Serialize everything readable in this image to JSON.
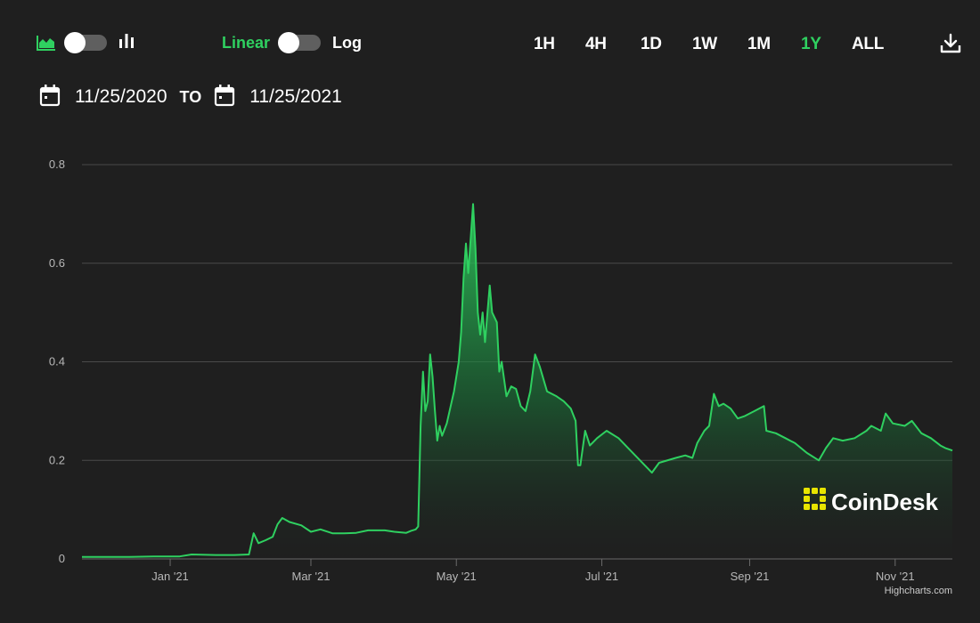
{
  "toolbar": {
    "chart_type_icons": [
      "area-chart-icon",
      "bar-chart-icon"
    ],
    "scale_linear": "Linear",
    "scale_log": "Log",
    "ranges": [
      "1H",
      "4H",
      "1D",
      "1W",
      "1M",
      "1Y",
      "ALL"
    ],
    "active_range": "1Y",
    "download_icon": "download-icon"
  },
  "date_range": {
    "from": "11/25/2020",
    "to_label": "TO",
    "to": "11/25/2021"
  },
  "watermark": {
    "text": "CoinDesk"
  },
  "credit": {
    "text": "Highcharts.com"
  },
  "colors": {
    "accent": "#2fd060",
    "background": "#1f1f1f",
    "grid": "#4a4a4a",
    "axis_text": "#b8b8b8",
    "logo_yellow": "#e8e400"
  },
  "chart_data": {
    "type": "area",
    "title": "",
    "xlabel": "",
    "ylabel": "",
    "ylim": [
      0,
      0.8
    ],
    "xlim": [
      "2020-11-25",
      "2021-11-25"
    ],
    "grid": true,
    "scale": "linear",
    "y_ticks": [
      "0",
      "0.2",
      "0.4",
      "0.6",
      "0.8"
    ],
    "x_ticks": [
      {
        "label": "Jan '21",
        "date": "2021-01-01"
      },
      {
        "label": "Mar '21",
        "date": "2021-03-01"
      },
      {
        "label": "May '21",
        "date": "2021-05-01"
      },
      {
        "label": "Jul '21",
        "date": "2021-07-01"
      },
      {
        "label": "Sep '21",
        "date": "2021-09-01"
      },
      {
        "label": "Nov '21",
        "date": "2021-11-01"
      }
    ],
    "series": [
      {
        "points": [
          [
            "2020-11-25",
            0.004
          ],
          [
            "2020-12-05",
            0.004
          ],
          [
            "2020-12-15",
            0.004
          ],
          [
            "2020-12-25",
            0.005
          ],
          [
            "2021-01-05",
            0.005
          ],
          [
            "2021-01-10",
            0.009
          ],
          [
            "2021-01-20",
            0.008
          ],
          [
            "2021-01-28",
            0.008
          ],
          [
            "2021-02-03",
            0.009
          ],
          [
            "2021-02-05",
            0.052
          ],
          [
            "2021-02-07",
            0.032
          ],
          [
            "2021-02-10",
            0.038
          ],
          [
            "2021-02-13",
            0.045
          ],
          [
            "2021-02-15",
            0.07
          ],
          [
            "2021-02-17",
            0.083
          ],
          [
            "2021-02-20",
            0.075
          ],
          [
            "2021-02-25",
            0.068
          ],
          [
            "2021-03-01",
            0.055
          ],
          [
            "2021-03-05",
            0.06
          ],
          [
            "2021-03-10",
            0.052
          ],
          [
            "2021-03-15",
            0.052
          ],
          [
            "2021-03-20",
            0.053
          ],
          [
            "2021-03-25",
            0.058
          ],
          [
            "2021-04-01",
            0.058
          ],
          [
            "2021-04-05",
            0.055
          ],
          [
            "2021-04-10",
            0.053
          ],
          [
            "2021-04-12",
            0.057
          ],
          [
            "2021-04-14",
            0.06
          ],
          [
            "2021-04-15",
            0.066
          ],
          [
            "2021-04-16",
            0.27
          ],
          [
            "2021-04-17",
            0.38
          ],
          [
            "2021-04-18",
            0.3
          ],
          [
            "2021-04-19",
            0.32
          ],
          [
            "2021-04-20",
            0.415
          ],
          [
            "2021-04-21",
            0.37
          ],
          [
            "2021-04-22",
            0.3
          ],
          [
            "2021-04-23",
            0.24
          ],
          [
            "2021-04-24",
            0.27
          ],
          [
            "2021-04-25",
            0.25
          ],
          [
            "2021-04-27",
            0.275
          ],
          [
            "2021-04-30",
            0.34
          ],
          [
            "2021-05-02",
            0.4
          ],
          [
            "2021-05-03",
            0.46
          ],
          [
            "2021-05-04",
            0.57
          ],
          [
            "2021-05-05",
            0.64
          ],
          [
            "2021-05-06",
            0.58
          ],
          [
            "2021-05-08",
            0.72
          ],
          [
            "2021-05-09",
            0.63
          ],
          [
            "2021-05-10",
            0.5
          ],
          [
            "2021-05-11",
            0.455
          ],
          [
            "2021-05-12",
            0.5
          ],
          [
            "2021-05-13",
            0.44
          ],
          [
            "2021-05-15",
            0.555
          ],
          [
            "2021-05-16",
            0.5
          ],
          [
            "2021-05-18",
            0.48
          ],
          [
            "2021-05-19",
            0.38
          ],
          [
            "2021-05-20",
            0.4
          ],
          [
            "2021-05-22",
            0.33
          ],
          [
            "2021-05-24",
            0.35
          ],
          [
            "2021-05-26",
            0.345
          ],
          [
            "2021-05-28",
            0.31
          ],
          [
            "2021-05-30",
            0.3
          ],
          [
            "2021-06-01",
            0.34
          ],
          [
            "2021-06-03",
            0.415
          ],
          [
            "2021-06-05",
            0.39
          ],
          [
            "2021-06-08",
            0.34
          ],
          [
            "2021-06-12",
            0.33
          ],
          [
            "2021-06-15",
            0.32
          ],
          [
            "2021-06-18",
            0.305
          ],
          [
            "2021-06-20",
            0.28
          ],
          [
            "2021-06-21",
            0.19
          ],
          [
            "2021-06-22",
            0.19
          ],
          [
            "2021-06-24",
            0.26
          ],
          [
            "2021-06-26",
            0.23
          ],
          [
            "2021-06-29",
            0.245
          ],
          [
            "2021-07-03",
            0.26
          ],
          [
            "2021-07-08",
            0.245
          ],
          [
            "2021-07-12",
            0.225
          ],
          [
            "2021-07-15",
            0.21
          ],
          [
            "2021-07-20",
            0.185
          ],
          [
            "2021-07-22",
            0.175
          ],
          [
            "2021-07-25",
            0.195
          ],
          [
            "2021-08-01",
            0.205
          ],
          [
            "2021-08-05",
            0.21
          ],
          [
            "2021-08-08",
            0.205
          ],
          [
            "2021-08-10",
            0.235
          ],
          [
            "2021-08-13",
            0.26
          ],
          [
            "2021-08-15",
            0.27
          ],
          [
            "2021-08-17",
            0.335
          ],
          [
            "2021-08-19",
            0.31
          ],
          [
            "2021-08-21",
            0.315
          ],
          [
            "2021-08-24",
            0.305
          ],
          [
            "2021-08-27",
            0.285
          ],
          [
            "2021-08-30",
            0.29
          ],
          [
            "2021-09-03",
            0.3
          ],
          [
            "2021-09-07",
            0.31
          ],
          [
            "2021-09-08",
            0.26
          ],
          [
            "2021-09-12",
            0.255
          ],
          [
            "2021-09-16",
            0.245
          ],
          [
            "2021-09-20",
            0.235
          ],
          [
            "2021-09-25",
            0.215
          ],
          [
            "2021-09-30",
            0.2
          ],
          [
            "2021-10-03",
            0.225
          ],
          [
            "2021-10-06",
            0.245
          ],
          [
            "2021-10-10",
            0.24
          ],
          [
            "2021-10-15",
            0.245
          ],
          [
            "2021-10-20",
            0.26
          ],
          [
            "2021-10-22",
            0.27
          ],
          [
            "2021-10-26",
            0.26
          ],
          [
            "2021-10-28",
            0.295
          ],
          [
            "2021-10-31",
            0.275
          ],
          [
            "2021-11-05",
            0.27
          ],
          [
            "2021-11-08",
            0.28
          ],
          [
            "2021-11-12",
            0.255
          ],
          [
            "2021-11-16",
            0.245
          ],
          [
            "2021-11-20",
            0.23
          ],
          [
            "2021-11-22",
            0.225
          ],
          [
            "2021-11-25",
            0.22
          ]
        ]
      }
    ]
  }
}
